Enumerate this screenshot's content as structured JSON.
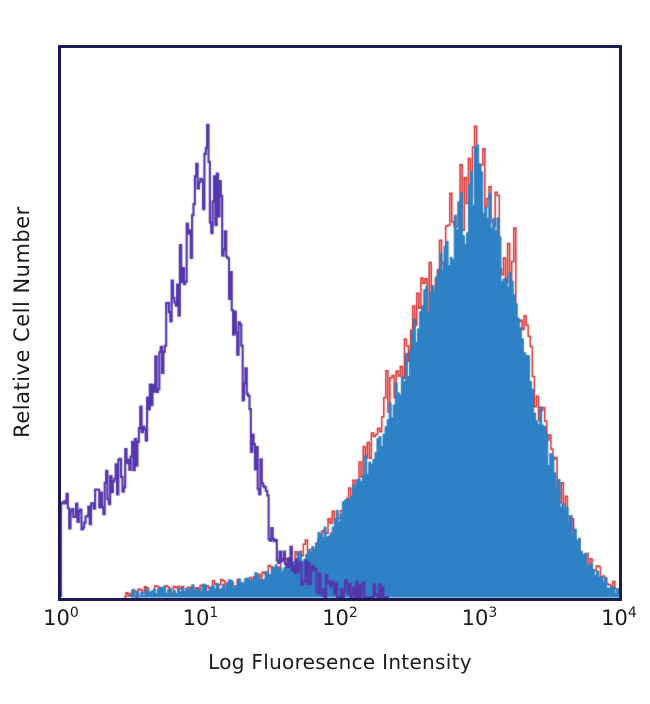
{
  "figure": {
    "background": "#ffffff",
    "border_color": "#1a1a55"
  },
  "chart_data": {
    "type": "area",
    "subtype": "flow-cytometry-histogram-overlay",
    "title": "",
    "xlabel": "Log Fluoresence Intensity",
    "ylabel": "Relative Cell Number",
    "x_scale": "log10",
    "x_range_log": [
      0,
      4
    ],
    "grid": false,
    "legend": "none",
    "x_ticks": [
      {
        "base": "10",
        "exp": "0"
      },
      {
        "base": "10",
        "exp": "1"
      },
      {
        "base": "10",
        "exp": "2"
      },
      {
        "base": "10",
        "exp": "3"
      },
      {
        "base": "10",
        "exp": "4"
      }
    ],
    "series": [
      {
        "id": "series-1-open-purple",
        "style": "open-outline",
        "line_color": "#5537ad",
        "fill_color": null,
        "line_width": 2.2,
        "peak_log": 1.05,
        "peak_height": 0.84,
        "start_log": 0.0,
        "end_log": 2.35,
        "seed": 11,
        "noise_base": 0.028,
        "noise_scale": 0.07,
        "spike_chance": 0,
        "spike_amp": 0,
        "scale": 1,
        "anchors_x": [
          0,
          0.12,
          0.25,
          0.38,
          0.5,
          0.6,
          0.7,
          0.8,
          0.9,
          0.98,
          1.04,
          1.09,
          1.14,
          1.2,
          1.3,
          1.4,
          1.5,
          1.6,
          1.7,
          1.8,
          1.9,
          2.0,
          2.15,
          2.35
        ],
        "anchors_y": [
          0.18,
          0.15,
          0.18,
          0.22,
          0.27,
          0.34,
          0.45,
          0.56,
          0.68,
          0.77,
          0.84,
          0.73,
          0.76,
          0.62,
          0.44,
          0.26,
          0.13,
          0.07,
          0.06,
          0.04,
          0.02,
          0.008,
          0.0,
          0.0
        ]
      },
      {
        "id": "series-2-red-outline",
        "style": "open-outline",
        "line_color": "#d92e2e",
        "fill_color": null,
        "line_width": 1.5,
        "peak_log": 2.98,
        "peak_height": 0.86,
        "start_log": 0.45,
        "end_log": 4.0,
        "seed": 23,
        "noise_base": 0.01,
        "noise_scale": 0.09,
        "spike_chance": 0.07,
        "spike_amp": 0.16,
        "scale": 1,
        "anchors_x": [
          0.45,
          0.7,
          0.9,
          1.1,
          1.3,
          1.5,
          1.7,
          1.9,
          2.1,
          2.3,
          2.5,
          2.65,
          2.8,
          2.9,
          2.98,
          3.04,
          3.1,
          3.2,
          3.3,
          3.45,
          3.6,
          3.75,
          3.9,
          4.0
        ],
        "anchors_y": [
          0.005,
          0.012,
          0.015,
          0.02,
          0.03,
          0.05,
          0.08,
          0.13,
          0.22,
          0.34,
          0.5,
          0.62,
          0.72,
          0.78,
          0.86,
          0.8,
          0.74,
          0.64,
          0.52,
          0.33,
          0.18,
          0.08,
          0.03,
          0.01
        ],
        "scale_note": "red trace sits slightly above the blue filled histogram"
      },
      {
        "id": "series-3-blue-filled",
        "style": "filled",
        "line_color": "#2e81c4",
        "fill_color": "#2e81c4",
        "line_width": 1,
        "peak_log": 2.98,
        "peak_height": 0.82,
        "start_log": 0.5,
        "end_log": 4.0,
        "seed": 37,
        "noise_base": 0.008,
        "noise_scale": 0.07,
        "spike_chance": 0,
        "spike_amp": 0,
        "scale": 0.95,
        "anchors_x": [
          0.45,
          0.7,
          0.9,
          1.1,
          1.3,
          1.5,
          1.7,
          1.9,
          2.1,
          2.3,
          2.5,
          2.65,
          2.8,
          2.9,
          2.98,
          3.04,
          3.1,
          3.2,
          3.3,
          3.45,
          3.6,
          3.75,
          3.9,
          4.0
        ],
        "anchors_y": [
          0.005,
          0.012,
          0.015,
          0.02,
          0.03,
          0.05,
          0.08,
          0.13,
          0.22,
          0.34,
          0.5,
          0.62,
          0.72,
          0.78,
          0.86,
          0.8,
          0.74,
          0.64,
          0.52,
          0.33,
          0.18,
          0.08,
          0.03,
          0.01
        ]
      }
    ]
  }
}
